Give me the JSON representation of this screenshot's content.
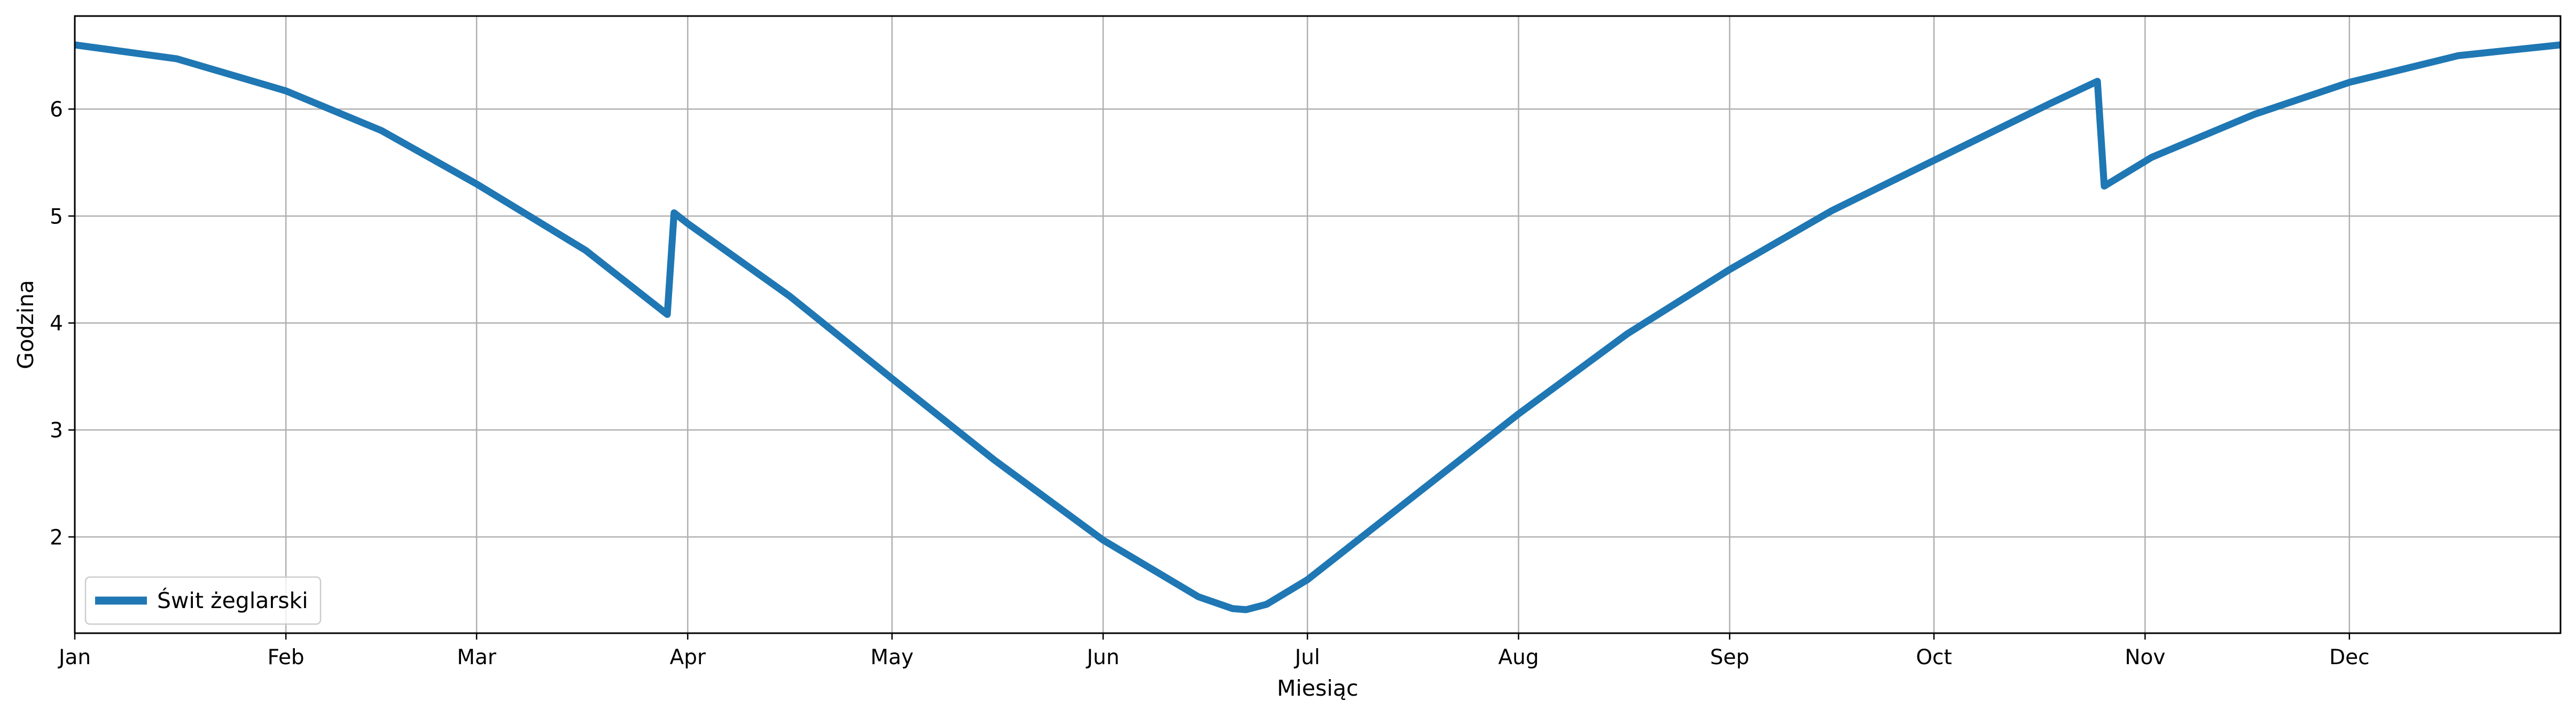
{
  "chart_data": {
    "type": "line",
    "title": "",
    "xlabel": "Miesiąc",
    "ylabel": "Godzina",
    "xlim": [
      0,
      365
    ],
    "ylim": [
      1.1,
      6.87
    ],
    "grid": true,
    "legend_position": "lower-left",
    "x_ticks": [
      {
        "label": "Jan",
        "day": 0
      },
      {
        "label": "Feb",
        "day": 31
      },
      {
        "label": "Mar",
        "day": 59
      },
      {
        "label": "Apr",
        "day": 90
      },
      {
        "label": "May",
        "day": 120
      },
      {
        "label": "Jun",
        "day": 151
      },
      {
        "label": "Jul",
        "day": 181
      },
      {
        "label": "Aug",
        "day": 212
      },
      {
        "label": "Sep",
        "day": 243
      },
      {
        "label": "Oct",
        "day": 273
      },
      {
        "label": "Nov",
        "day": 304
      },
      {
        "label": "Dec",
        "day": 334
      }
    ],
    "y_ticks": [
      2,
      3,
      4,
      5,
      6
    ],
    "series": [
      {
        "name": "Świt żeglarski",
        "color": "#1f77b4",
        "x": [
          0,
          15,
          31,
          45,
          59,
          75,
          87,
          88,
          90,
          105,
          120,
          135,
          151,
          165,
          170,
          172,
          175,
          181,
          195,
          212,
          228,
          243,
          258,
          273,
          290,
          297,
          298,
          305,
          320,
          334,
          350,
          365
        ],
        "y": [
          6.6,
          6.47,
          6.17,
          5.8,
          5.3,
          4.68,
          4.08,
          5.03,
          4.93,
          4.25,
          3.48,
          2.72,
          1.97,
          1.44,
          1.33,
          1.32,
          1.37,
          1.6,
          2.3,
          3.15,
          3.9,
          4.5,
          5.05,
          5.52,
          6.05,
          6.26,
          5.28,
          5.55,
          5.95,
          6.25,
          6.5,
          6.6
        ]
      }
    ]
  }
}
